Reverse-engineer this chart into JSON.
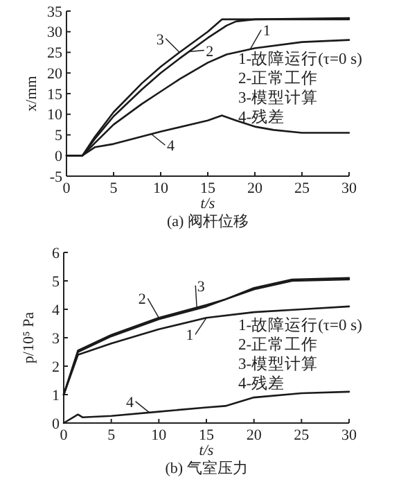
{
  "chart_data": [
    {
      "type": "line",
      "title": "(a) 阀杆位移",
      "xlabel": "t/s",
      "ylabel": "x/mm",
      "xlim": [
        0,
        30
      ],
      "ylim": [
        -5,
        35
      ],
      "xticks": [
        0,
        5,
        10,
        15,
        20,
        25,
        30
      ],
      "yticks": [
        -5,
        0,
        5,
        10,
        15,
        20,
        25,
        30,
        35
      ],
      "legend": "right",
      "marker": "none",
      "line_style": "solid",
      "series": [
        {
          "name": "1",
          "color": "#1a1a1a",
          "x": [
            0,
            1.7,
            3,
            5,
            8,
            10,
            12,
            15,
            17,
            20,
            25,
            30
          ],
          "values": [
            0,
            0,
            3,
            7.5,
            12.5,
            15.5,
            18.5,
            22.5,
            24.5,
            26,
            27.5,
            28
          ]
        },
        {
          "name": "2",
          "color": "#1a1a1a",
          "x": [
            0,
            1.7,
            3,
            5,
            8,
            10,
            12,
            15,
            17,
            18,
            20,
            30
          ],
          "values": [
            0,
            0,
            4,
            9.5,
            16,
            20,
            23.5,
            28.5,
            31.5,
            32.5,
            33,
            33
          ]
        },
        {
          "name": "3",
          "color": "#1a1a1a",
          "x": [
            0,
            1.7,
            3,
            5,
            8,
            10,
            12,
            15,
            16.5,
            20,
            30
          ],
          "values": [
            0,
            0,
            4.5,
            10.5,
            17.5,
            21.5,
            25,
            30,
            33,
            33,
            33.3
          ]
        },
        {
          "name": "4",
          "color": "#1a1a1a",
          "x": [
            0,
            1.7,
            3,
            5,
            10,
            15,
            16.5,
            18,
            20,
            22,
            25,
            30
          ],
          "values": [
            0,
            0,
            2,
            2.8,
            5.8,
            8.5,
            9.7,
            8.5,
            7,
            6.2,
            5.5,
            5.5
          ]
        }
      ],
      "annotations": [
        "1-故障运行(τ=0 s)",
        "2-正常工作",
        "3-模型计算",
        "4-残差"
      ]
    },
    {
      "type": "line",
      "title": "(b) 气室压力",
      "xlabel": "t/s",
      "ylabel": "p/10⁵ Pa",
      "xlim": [
        0,
        30
      ],
      "ylim": [
        0,
        6
      ],
      "xticks": [
        0,
        5,
        10,
        15,
        20,
        25,
        30
      ],
      "yticks": [
        0,
        1,
        2,
        3,
        4,
        5,
        6
      ],
      "legend": "bottom left",
      "marker": "none",
      "line_style": "solid",
      "series": [
        {
          "name": "1",
          "color": "#1a1a1a",
          "x": [
            0,
            1.5,
            5,
            10,
            15,
            20,
            25,
            30
          ],
          "values": [
            1,
            2.4,
            2.8,
            3.3,
            3.7,
            3.9,
            4,
            4.1
          ]
        },
        {
          "name": "2",
          "color": "#1a1a1a",
          "x": [
            0,
            1.5,
            5,
            10,
            15,
            17,
            20,
            24,
            30
          ],
          "values": [
            1,
            2.55,
            3.1,
            3.7,
            4.15,
            4.35,
            4.7,
            5,
            5.05
          ]
        },
        {
          "name": "3",
          "color": "#1a1a1a",
          "x": [
            0,
            1.5,
            5,
            10,
            15,
            17,
            20,
            24,
            30
          ],
          "values": [
            1,
            2.5,
            3.05,
            3.65,
            4.1,
            4.35,
            4.75,
            5.05,
            5.1
          ]
        },
        {
          "name": "4",
          "color": "#1a1a1a",
          "x": [
            0,
            1.5,
            2,
            5,
            10,
            15,
            17,
            20,
            25,
            30
          ],
          "values": [
            0,
            0.3,
            0.2,
            0.25,
            0.4,
            0.55,
            0.6,
            0.9,
            1.05,
            1.1
          ]
        }
      ],
      "annotations": [
        "1-故障运行(τ=0 s)",
        "2-正常工作",
        "3-模型计算",
        "4-残差"
      ]
    }
  ]
}
